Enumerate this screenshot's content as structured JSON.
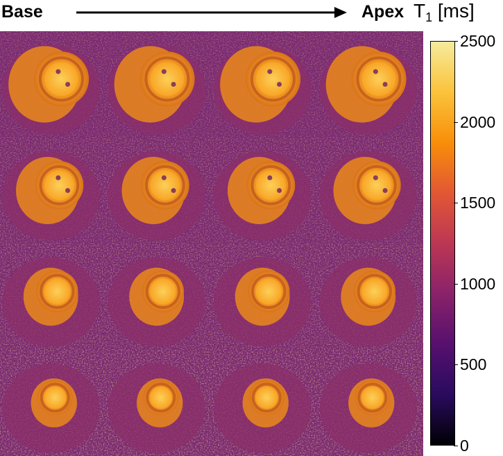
{
  "header": {
    "base_label": "Base",
    "apex_label": "Apex"
  },
  "colorbar": {
    "title_main": "T",
    "title_sub": "1",
    "title_unit": "[ms]",
    "min": 0,
    "max": 2500,
    "ticks": [
      "2500",
      "2000",
      "1500",
      "1000",
      "500",
      "0"
    ],
    "colormap": "inferno-like",
    "stops": [
      "#000004",
      "#2a0b5e",
      "#57106e",
      "#8a226a",
      "#bc3754",
      "#e25734",
      "#f98e09",
      "#fbc33b",
      "#f6eb9c"
    ]
  },
  "grid": {
    "rows": 4,
    "cols": 4,
    "image_type": "cardiac short-axis T1 map slices"
  }
}
